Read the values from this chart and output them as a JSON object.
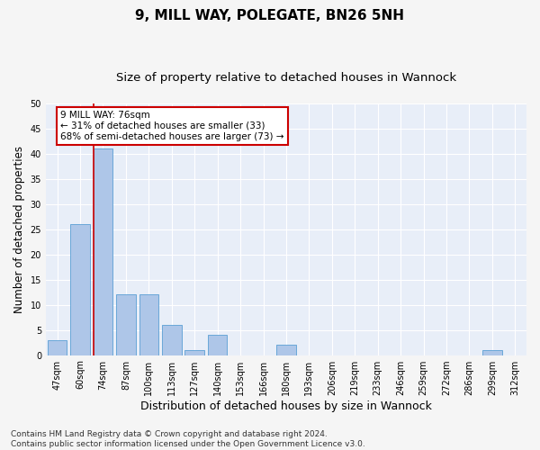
{
  "title": "9, MILL WAY, POLEGATE, BN26 5NH",
  "subtitle": "Size of property relative to detached houses in Wannock",
  "xlabel": "Distribution of detached houses by size in Wannock",
  "ylabel": "Number of detached properties",
  "categories": [
    "47sqm",
    "60sqm",
    "74sqm",
    "87sqm",
    "100sqm",
    "113sqm",
    "127sqm",
    "140sqm",
    "153sqm",
    "166sqm",
    "180sqm",
    "193sqm",
    "206sqm",
    "219sqm",
    "233sqm",
    "246sqm",
    "259sqm",
    "272sqm",
    "286sqm",
    "299sqm",
    "312sqm"
  ],
  "values": [
    3,
    26,
    41,
    12,
    12,
    6,
    1,
    4,
    0,
    0,
    2,
    0,
    0,
    0,
    0,
    0,
    0,
    0,
    0,
    1,
    0
  ],
  "bar_color": "#aec6e8",
  "bar_edge_color": "#5a9fd4",
  "highlight_bar_index": 2,
  "highlight_line_color": "#cc0000",
  "annotation_text": "9 MILL WAY: 76sqm\n← 31% of detached houses are smaller (33)\n68% of semi-detached houses are larger (73) →",
  "annotation_box_color": "#ffffff",
  "annotation_box_edge_color": "#cc0000",
  "ylim": [
    0,
    50
  ],
  "yticks": [
    0,
    5,
    10,
    15,
    20,
    25,
    30,
    35,
    40,
    45,
    50
  ],
  "background_color": "#e8eef8",
  "grid_color": "#ffffff",
  "footer_line1": "Contains HM Land Registry data © Crown copyright and database right 2024.",
  "footer_line2": "Contains public sector information licensed under the Open Government Licence v3.0.",
  "title_fontsize": 11,
  "subtitle_fontsize": 9.5,
  "xlabel_fontsize": 9,
  "ylabel_fontsize": 8.5,
  "tick_fontsize": 7,
  "footer_fontsize": 6.5,
  "fig_facecolor": "#f5f5f5"
}
